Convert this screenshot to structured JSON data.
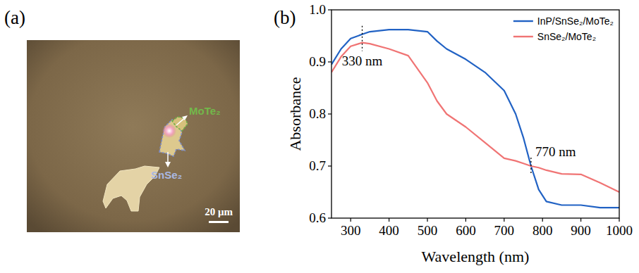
{
  "image_panel": {
    "label": "(a)",
    "annotations": [
      {
        "text": "MoTe₂"
      },
      {
        "text": "SnSe₂"
      }
    ],
    "scale_bar": "20 μm"
  },
  "chart_data": {
    "label": "(b)",
    "type": "line",
    "x_label": "Wavelength (nm)",
    "y_label": "Absorbance",
    "x": [
      250,
      275,
      300,
      330,
      350,
      400,
      450,
      500,
      525,
      550,
      600,
      650,
      700,
      730,
      750,
      770,
      790,
      810,
      850,
      900,
      950,
      1000
    ],
    "series": [
      {
        "name": "InP/SnSe₂/MoTe₂",
        "color": "#2162c4",
        "values": [
          0.895,
          0.925,
          0.945,
          0.953,
          0.958,
          0.962,
          0.962,
          0.958,
          0.94,
          0.925,
          0.905,
          0.88,
          0.845,
          0.8,
          0.755,
          0.7,
          0.655,
          0.632,
          0.625,
          0.625,
          0.62,
          0.62
        ]
      },
      {
        "name": "SnSe₂/MoTe₂",
        "color": "#f07474",
        "values": [
          0.88,
          0.91,
          0.93,
          0.937,
          0.935,
          0.925,
          0.912,
          0.86,
          0.825,
          0.8,
          0.775,
          0.745,
          0.715,
          0.71,
          0.705,
          0.7,
          0.697,
          0.692,
          0.685,
          0.684,
          0.668,
          0.65
        ]
      }
    ],
    "xlim": [
      250,
      1000
    ],
    "xticks": [
      300,
      400,
      500,
      600,
      700,
      800,
      900,
      1000
    ],
    "ylim": [
      0.6,
      1.0
    ],
    "yticks": [
      0.6,
      0.7,
      0.8,
      0.9,
      {
        "value": 1.0,
        "label": "1.0"
      }
    ],
    "annotations": [
      {
        "text": "330 nm",
        "x": 330
      },
      {
        "text": "770 nm",
        "x": 770
      }
    ],
    "legend": "upper right",
    "grid": false
  }
}
